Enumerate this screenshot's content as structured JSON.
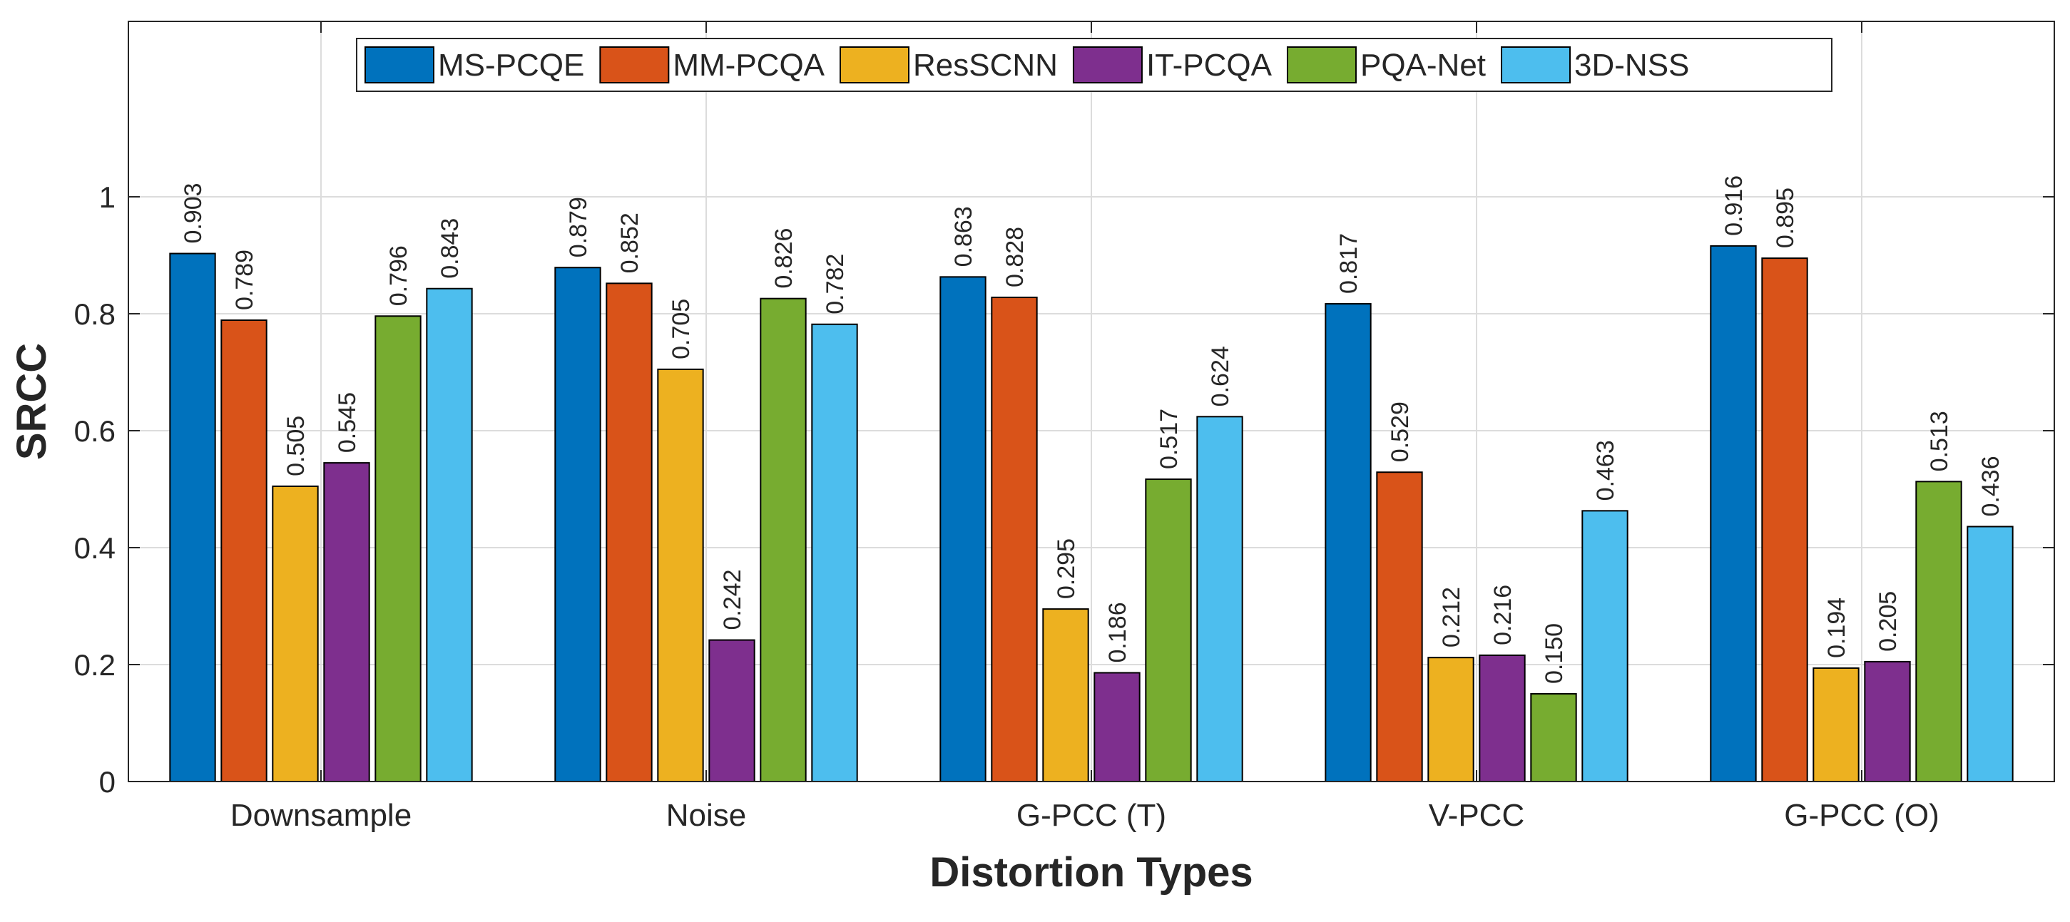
{
  "chart_data": {
    "type": "bar",
    "title": "",
    "xlabel": "Distortion Types",
    "ylabel": "SRCC",
    "ylim": [
      0,
      1.3
    ],
    "yticks": [
      0,
      0.2,
      0.4,
      0.6,
      0.8,
      1
    ],
    "ytick_labels": [
      "0",
      "0.2",
      "0.4",
      "0.6",
      "0.8",
      "1"
    ],
    "grid": true,
    "legend_position": "top-center",
    "categories": [
      "Downsample",
      "Noise",
      "G-PCC (T)",
      "V-PCC",
      "G-PCC (O)"
    ],
    "series": [
      {
        "name": "MS-PCQE",
        "color": "#0072BD",
        "values": [
          0.903,
          0.879,
          0.863,
          0.817,
          0.916
        ],
        "labels": [
          "0.903",
          "0.879",
          "0.863",
          "0.817",
          "0.916"
        ]
      },
      {
        "name": "MM-PCQA",
        "color": "#D95319",
        "values": [
          0.789,
          0.852,
          0.828,
          0.529,
          0.895
        ],
        "labels": [
          "0.789",
          "0.852",
          "0.828",
          "0.529",
          "0.895"
        ]
      },
      {
        "name": "ResSCNN",
        "color": "#EDB120",
        "values": [
          0.505,
          0.705,
          0.295,
          0.212,
          0.194
        ],
        "labels": [
          "0.505",
          "0.705",
          "0.295",
          "0.212",
          "0.194"
        ]
      },
      {
        "name": "IT-PCQA",
        "color": "#7E2F8E",
        "values": [
          0.545,
          0.242,
          0.186,
          0.216,
          0.205
        ],
        "labels": [
          "0.545",
          "0.242",
          "0.186",
          "0.216",
          "0.205"
        ]
      },
      {
        "name": "PQA-Net",
        "color": "#77AC30",
        "values": [
          0.796,
          0.826,
          0.517,
          0.15,
          0.513
        ],
        "labels": [
          "0.796",
          "0.826",
          "0.517",
          "0.150",
          "0.513"
        ]
      },
      {
        "name": "3D-NSS",
        "color": "#4DBEEE",
        "values": [
          0.843,
          0.782,
          0.624,
          0.463,
          0.436
        ],
        "labels": [
          "0.843",
          "0.782",
          "0.624",
          "0.463",
          "0.436"
        ]
      }
    ]
  }
}
